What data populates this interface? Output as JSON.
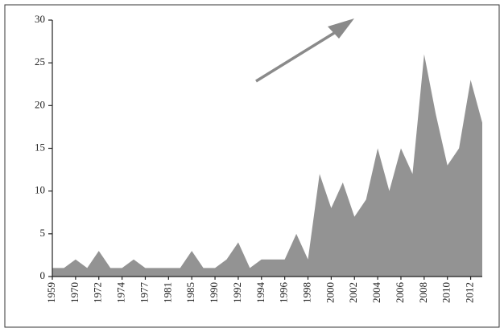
{
  "chart_data": {
    "type": "area",
    "categories": [
      "1959",
      null,
      "1970",
      null,
      "1972",
      null,
      "1974",
      null,
      "1977",
      null,
      "1981",
      null,
      "1985",
      null,
      "1990",
      null,
      "1992",
      null,
      "1994",
      null,
      "1996",
      null,
      "1998",
      null,
      "2000",
      null,
      "2002",
      null,
      "2004",
      null,
      "2006",
      null,
      "2008",
      null,
      "2010",
      null,
      "2012",
      null
    ],
    "values": [
      1,
      1,
      2,
      1,
      3,
      1,
      1,
      2,
      1,
      1,
      1,
      1,
      3,
      1,
      1,
      2,
      4,
      1,
      2,
      2,
      2,
      5,
      2,
      12,
      8,
      11,
      7,
      9,
      15,
      10,
      15,
      12,
      26,
      19,
      13,
      15,
      23,
      18
    ],
    "color": "#939393",
    "ylim": [
      0,
      30
    ],
    "yticks": [
      0,
      5,
      10,
      15,
      20,
      25,
      30
    ],
    "grid": false
  }
}
